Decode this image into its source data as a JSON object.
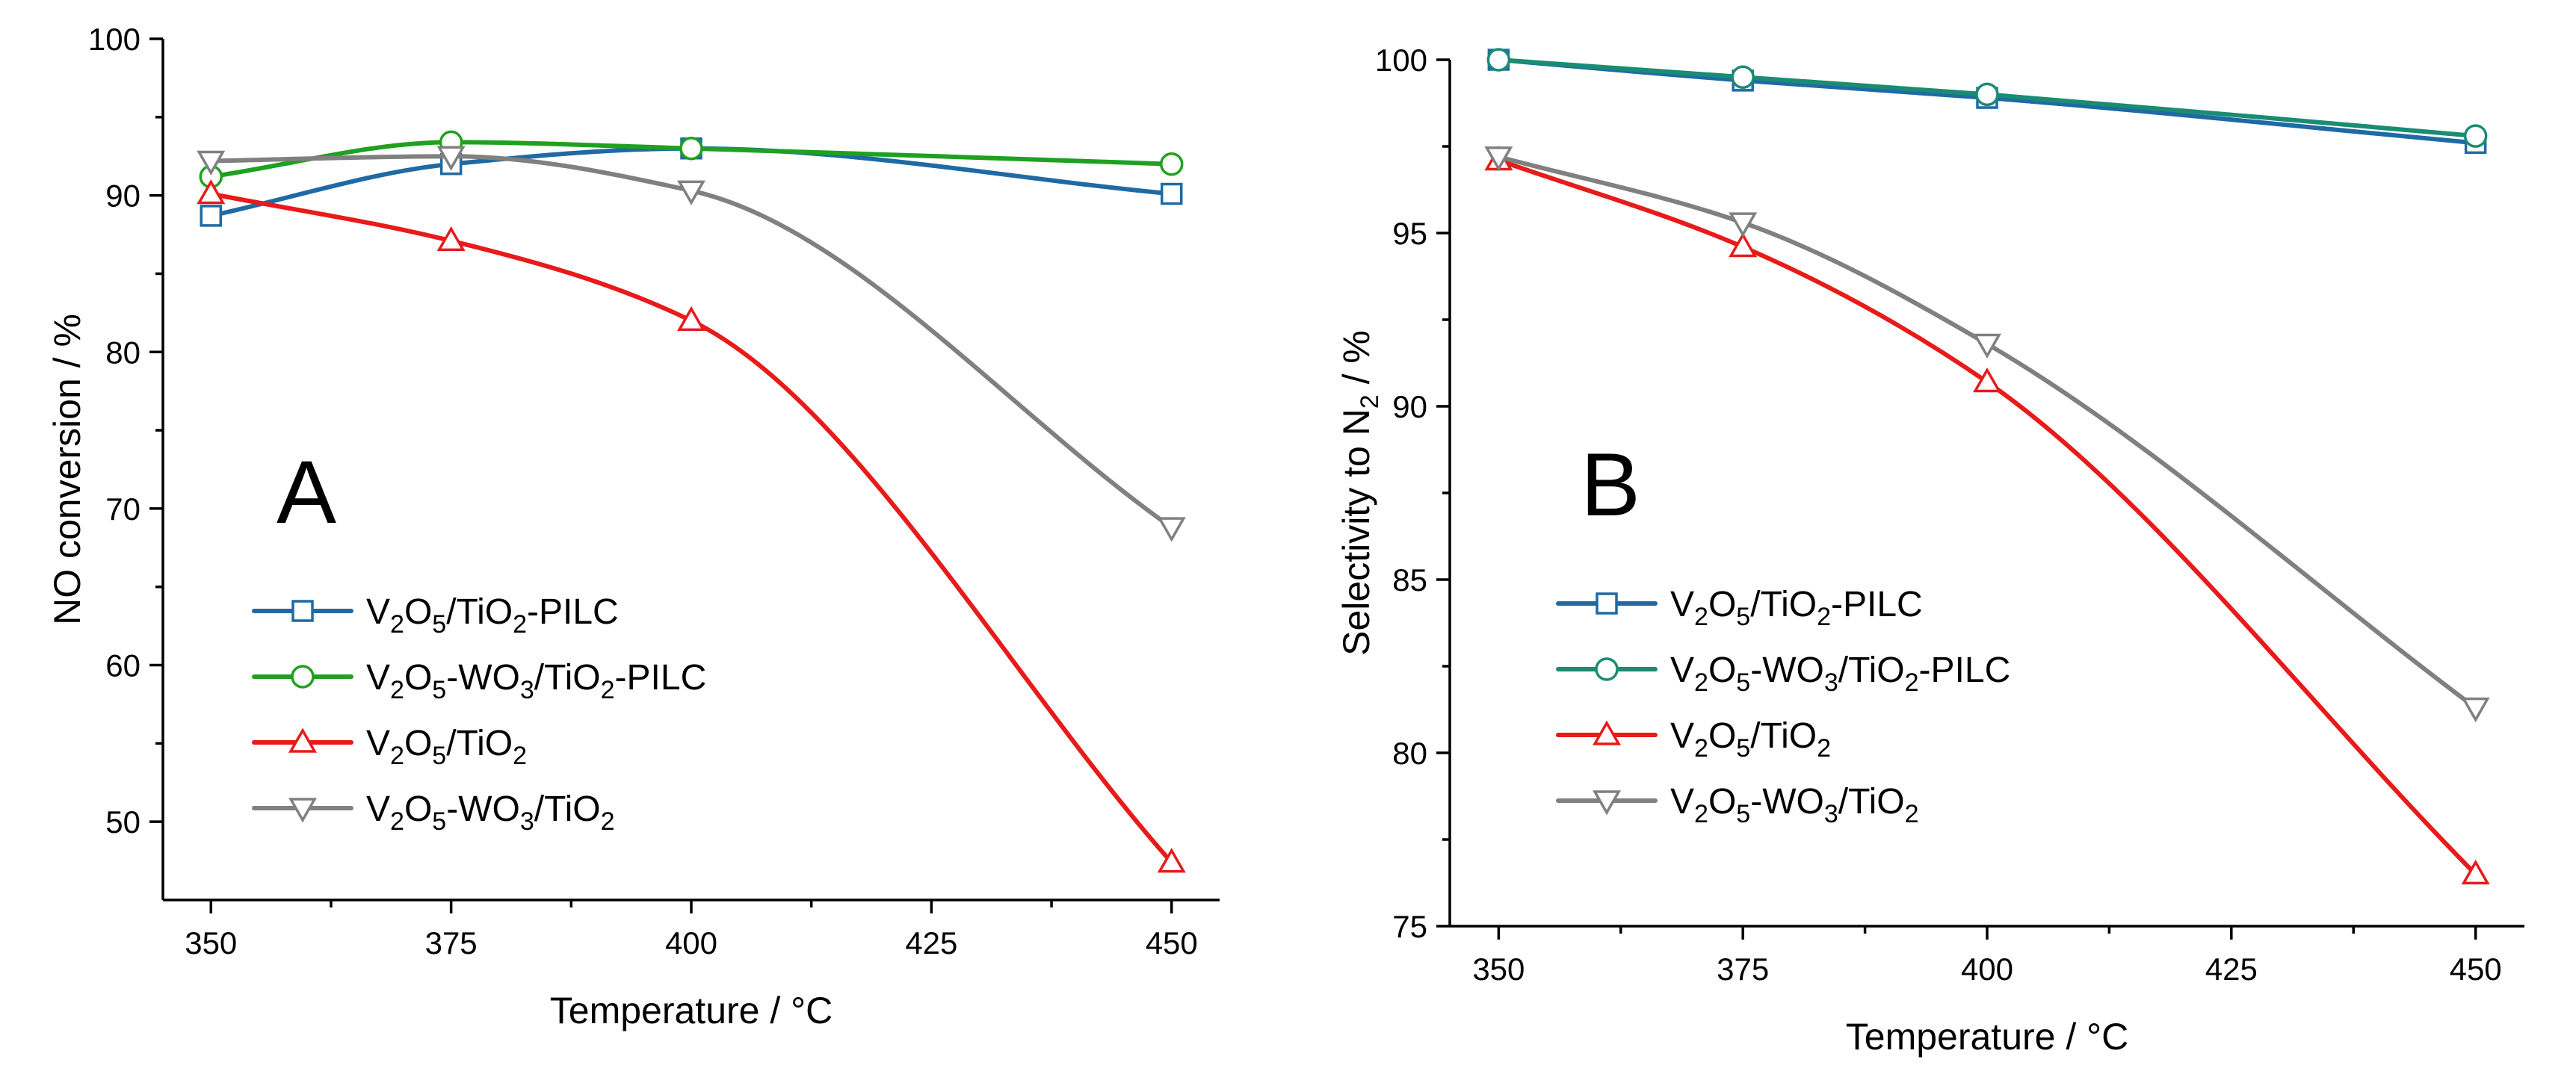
{
  "chart_data": [
    {
      "type": "line",
      "panel_label": "A",
      "xlabel": "Temperature / °C",
      "ylabel": "NO conversion / %",
      "x": [
        350,
        375,
        400,
        450
      ],
      "xlim": [
        345,
        455
      ],
      "ylim": [
        45,
        100
      ],
      "xticks": [
        350,
        375,
        400,
        425,
        450
      ],
      "yticks": [
        50,
        60,
        70,
        80,
        90,
        100
      ],
      "legend_position": "lower-left",
      "series": [
        {
          "name": "V2O5/TiO2-PILC",
          "legend": [
            "V",
            "2",
            "O",
            "5",
            "/TiO",
            "2",
            "-PILC"
          ],
          "marker": "square",
          "color": "#1f6aa5",
          "values": [
            88.7,
            92.0,
            93.0,
            90.1
          ]
        },
        {
          "name": "V2O5-WO3/TiO2-PILC",
          "legend": [
            "V",
            "2",
            "O",
            "5",
            "-WO",
            "3",
            "/TiO",
            "2",
            "-PILC"
          ],
          "marker": "circle",
          "color": "#1fa11f",
          "values": [
            91.2,
            93.4,
            93.0,
            92.0
          ]
        },
        {
          "name": "V2O5/TiO2",
          "legend": [
            "V",
            "2",
            "O",
            "5",
            "/TiO",
            "2"
          ],
          "marker": "triangle-up",
          "color": "#e81a1a",
          "values": [
            90.1,
            87.1,
            82.0,
            47.4
          ]
        },
        {
          "name": "V2O5-WO3/TiO2",
          "legend": [
            "V",
            "2",
            "O",
            "5",
            "-WO",
            "3",
            "/TiO",
            "2"
          ],
          "marker": "triangle-down",
          "color": "#808080",
          "values": [
            92.2,
            92.5,
            90.3,
            68.8
          ]
        }
      ]
    },
    {
      "type": "line",
      "panel_label": "B",
      "xlabel": "Temperature / °C",
      "ylabel": "Selectivity to N2 / %",
      "ylabel_parts": [
        "Selectivity to N",
        "2",
        " / %"
      ],
      "x": [
        350,
        375,
        400,
        450
      ],
      "xlim": [
        345,
        455
      ],
      "ylim": [
        75,
        100
      ],
      "xticks": [
        350,
        375,
        400,
        425,
        450
      ],
      "yticks": [
        75,
        80,
        85,
        90,
        95,
        100
      ],
      "legend_position": "lower-left",
      "series": [
        {
          "name": "V2O5/TiO2-PILC",
          "legend": [
            "V",
            "2",
            "O",
            "5",
            "/TiO",
            "2",
            "-PILC"
          ],
          "marker": "square",
          "color": "#1f6aa5",
          "values": [
            100.0,
            99.4,
            98.9,
            97.6
          ]
        },
        {
          "name": "V2O5-WO3/TiO2-PILC",
          "legend": [
            "V",
            "2",
            "O",
            "5",
            "-WO",
            "3",
            "/TiO",
            "2",
            "-PILC"
          ],
          "marker": "circle",
          "color": "#1a8c73",
          "values": [
            100.0,
            99.5,
            99.0,
            97.8
          ]
        },
        {
          "name": "V2O5/TiO2",
          "legend": [
            "V",
            "2",
            "O",
            "5",
            "/TiO",
            "2"
          ],
          "marker": "triangle-up",
          "color": "#e81a1a",
          "values": [
            97.1,
            94.6,
            90.7,
            76.5
          ]
        },
        {
          "name": "V2O5-WO3/TiO2",
          "legend": [
            "V",
            "2",
            "O",
            "5",
            "-WO",
            "3",
            "/TiO",
            "2"
          ],
          "marker": "triangle-down",
          "color": "#808080",
          "values": [
            97.2,
            95.3,
            91.8,
            81.3
          ]
        }
      ]
    }
  ]
}
